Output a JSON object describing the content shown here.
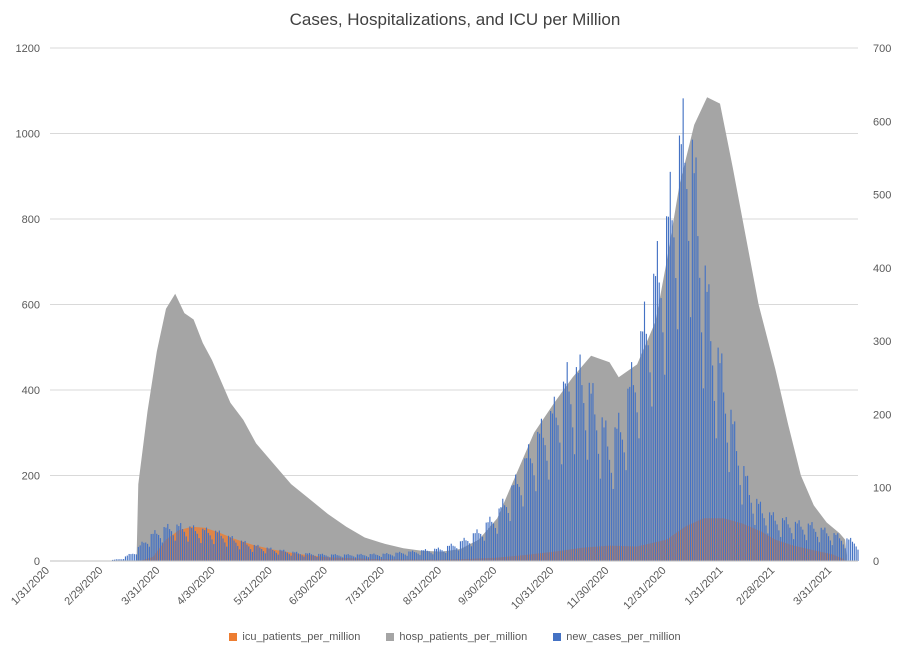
{
  "chart_data": {
    "type": "area",
    "title": "Cases, Hospitalizations, and ICU per Million",
    "y_left": {
      "min": 0,
      "max": 1200,
      "ticks": [
        0,
        200,
        400,
        600,
        800,
        1000,
        1200
      ]
    },
    "y_right": {
      "min": 0,
      "max": 700,
      "ticks": [
        0,
        100,
        200,
        300,
        400,
        500,
        600,
        700
      ]
    },
    "x_range": [
      "2020-01-31",
      "2021-04-14"
    ],
    "x_ticks": [
      "1/31/2020",
      "2/29/2020",
      "3/31/2020",
      "4/30/2020",
      "5/31/2020",
      "6/30/2020",
      "7/31/2020",
      "8/31/2020",
      "9/30/2020",
      "10/31/2020",
      "11/30/2020",
      "12/31/2020",
      "1/31/2021",
      "2/28/2021",
      "3/31/2021"
    ],
    "gridlines": true,
    "legend_position": "bottom",
    "series": [
      {
        "name": "icu_patients_per_million",
        "axis": "left",
        "render": "area",
        "color": "#ED7D31",
        "points": [
          [
            "2020-01-31",
            0
          ],
          [
            "2020-03-20",
            0
          ],
          [
            "2020-03-27",
            10
          ],
          [
            "2020-04-03",
            50
          ],
          [
            "2020-04-10",
            72
          ],
          [
            "2020-04-17",
            80
          ],
          [
            "2020-04-24",
            78
          ],
          [
            "2020-05-01",
            68
          ],
          [
            "2020-05-10",
            52
          ],
          [
            "2020-05-20",
            38
          ],
          [
            "2020-05-31",
            27
          ],
          [
            "2020-06-15",
            16
          ],
          [
            "2020-06-30",
            9
          ],
          [
            "2020-07-15",
            6
          ],
          [
            "2020-07-31",
            4
          ],
          [
            "2020-08-31",
            3
          ],
          [
            "2020-09-15",
            5
          ],
          [
            "2020-09-30",
            8
          ],
          [
            "2020-10-15",
            14
          ],
          [
            "2020-10-31",
            22
          ],
          [
            "2020-11-15",
            31
          ],
          [
            "2020-11-30",
            36
          ],
          [
            "2020-12-15",
            34
          ],
          [
            "2020-12-31",
            50
          ],
          [
            "2021-01-10",
            80
          ],
          [
            "2021-01-20",
            100
          ],
          [
            "2021-01-31",
            100
          ],
          [
            "2021-02-10",
            88
          ],
          [
            "2021-02-20",
            70
          ],
          [
            "2021-02-28",
            50
          ],
          [
            "2021-03-10",
            36
          ],
          [
            "2021-03-20",
            26
          ],
          [
            "2021-03-31",
            16
          ],
          [
            "2021-04-06",
            5
          ],
          [
            "2021-04-07",
            0
          ]
        ]
      },
      {
        "name": "hosp_patients_per_million",
        "axis": "left",
        "render": "area",
        "color": "#A5A5A5",
        "points": [
          [
            "2020-01-31",
            0
          ],
          [
            "2020-03-18",
            0
          ],
          [
            "2020-03-19",
            180
          ],
          [
            "2020-03-24",
            350
          ],
          [
            "2020-03-29",
            490
          ],
          [
            "2020-04-03",
            590
          ],
          [
            "2020-04-08",
            625
          ],
          [
            "2020-04-13",
            580
          ],
          [
            "2020-04-18",
            565
          ],
          [
            "2020-04-23",
            510
          ],
          [
            "2020-04-28",
            470
          ],
          [
            "2020-05-03",
            420
          ],
          [
            "2020-05-08",
            370
          ],
          [
            "2020-05-15",
            330
          ],
          [
            "2020-05-22",
            275
          ],
          [
            "2020-05-31",
            230
          ],
          [
            "2020-06-10",
            180
          ],
          [
            "2020-06-20",
            145
          ],
          [
            "2020-06-30",
            110
          ],
          [
            "2020-07-10",
            80
          ],
          [
            "2020-07-20",
            55
          ],
          [
            "2020-07-31",
            40
          ],
          [
            "2020-08-10",
            30
          ],
          [
            "2020-08-20",
            24
          ],
          [
            "2020-08-31",
            22
          ],
          [
            "2020-09-10",
            28
          ],
          [
            "2020-09-20",
            50
          ],
          [
            "2020-09-30",
            100
          ],
          [
            "2020-10-10",
            200
          ],
          [
            "2020-10-20",
            300
          ],
          [
            "2020-10-31",
            370
          ],
          [
            "2020-11-10",
            430
          ],
          [
            "2020-11-20",
            480
          ],
          [
            "2020-11-30",
            465
          ],
          [
            "2020-12-05",
            430
          ],
          [
            "2020-12-15",
            460
          ],
          [
            "2020-12-25",
            560
          ],
          [
            "2020-12-31",
            700
          ],
          [
            "2021-01-07",
            880
          ],
          [
            "2021-01-15",
            1020
          ],
          [
            "2021-01-22",
            1085
          ],
          [
            "2021-01-29",
            1070
          ],
          [
            "2021-02-05",
            920
          ],
          [
            "2021-02-12",
            760
          ],
          [
            "2021-02-19",
            600
          ],
          [
            "2021-02-28",
            450
          ],
          [
            "2021-03-07",
            320
          ],
          [
            "2021-03-14",
            200
          ],
          [
            "2021-03-21",
            130
          ],
          [
            "2021-03-28",
            90
          ],
          [
            "2021-04-04",
            65
          ],
          [
            "2021-04-07",
            50
          ],
          [
            "2021-04-08",
            0
          ]
        ]
      },
      {
        "name": "new_cases_per_million",
        "axis": "right",
        "render": "column",
        "color": "#4472C4",
        "points": [
          [
            "2020-01-31",
            0
          ],
          [
            "2020-03-01",
            0
          ],
          [
            "2020-03-10",
            3
          ],
          [
            "2020-03-17",
            12
          ],
          [
            "2020-03-24",
            30
          ],
          [
            "2020-03-31",
            40
          ],
          [
            "2020-04-07",
            45
          ],
          [
            "2020-04-14",
            43
          ],
          [
            "2020-04-21",
            40
          ],
          [
            "2020-04-30",
            37
          ],
          [
            "2020-05-10",
            28
          ],
          [
            "2020-05-20",
            20
          ],
          [
            "2020-05-31",
            15
          ],
          [
            "2020-06-15",
            10
          ],
          [
            "2020-06-30",
            8
          ],
          [
            "2020-07-15",
            8
          ],
          [
            "2020-07-31",
            9
          ],
          [
            "2020-08-15",
            12
          ],
          [
            "2020-08-31",
            16
          ],
          [
            "2020-09-10",
            24
          ],
          [
            "2020-09-20",
            38
          ],
          [
            "2020-09-30",
            60
          ],
          [
            "2020-10-10",
            100
          ],
          [
            "2020-10-20",
            150
          ],
          [
            "2020-10-31",
            190
          ],
          [
            "2020-11-07",
            230
          ],
          [
            "2020-11-15",
            240
          ],
          [
            "2020-11-22",
            200
          ],
          [
            "2020-11-30",
            150
          ],
          [
            "2020-12-07",
            180
          ],
          [
            "2020-12-15",
            260
          ],
          [
            "2020-12-22",
            330
          ],
          [
            "2020-12-31",
            420
          ],
          [
            "2021-01-06",
            510
          ],
          [
            "2021-01-12",
            560
          ],
          [
            "2021-01-18",
            420
          ],
          [
            "2021-01-24",
            300
          ],
          [
            "2021-01-31",
            230
          ],
          [
            "2021-02-07",
            150
          ],
          [
            "2021-02-14",
            90
          ],
          [
            "2021-02-21",
            65
          ],
          [
            "2021-02-28",
            55
          ],
          [
            "2021-03-10",
            48
          ],
          [
            "2021-03-20",
            45
          ],
          [
            "2021-03-31",
            35
          ],
          [
            "2021-04-07",
            28
          ],
          [
            "2021-04-14",
            25
          ]
        ]
      }
    ]
  }
}
